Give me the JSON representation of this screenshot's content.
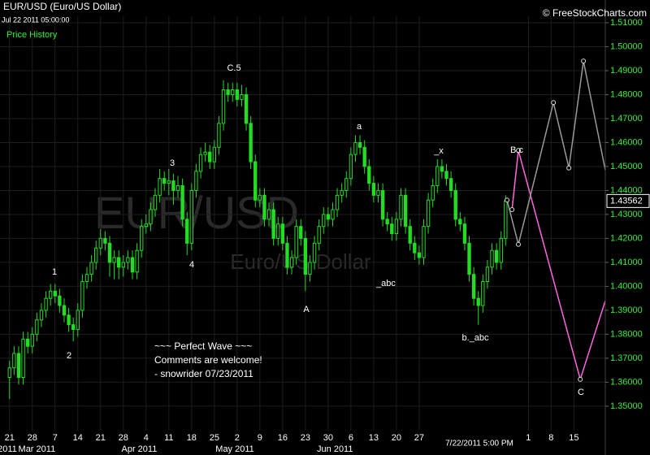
{
  "chart_data": {
    "type": "candlestick",
    "title": "EUR/USD (Euro/US Dollar)",
    "subtitle": "Jul 22 2011 05:00:00",
    "panel_label": "Price History",
    "copyright": "© FreeStockCharts.com",
    "watermark": "EUR/USD",
    "watermark_subtitle": "Euro/US Dollar",
    "crosshair_time": "7/22/2011 5:00 PM",
    "color": "#22dd22",
    "grid": true,
    "open": [
      1.362,
      1.366,
      1.372,
      1.362,
      1.378,
      1.375,
      1.38,
      1.386,
      1.39,
      1.395,
      1.398,
      1.396,
      1.392,
      1.388,
      1.384,
      1.382,
      1.39,
      1.402,
      1.405,
      1.41,
      1.416,
      1.42,
      1.418,
      1.41,
      1.412,
      1.408,
      1.41,
      1.412,
      1.406,
      1.415,
      1.425,
      1.426,
      1.432,
      1.438,
      1.445,
      1.443,
      1.444,
      1.44,
      1.442,
      1.428,
      1.418,
      1.44,
      1.448,
      1.455,
      1.456,
      1.452,
      1.458,
      1.468,
      1.482,
      1.48,
      1.482,
      1.478,
      1.48,
      1.468,
      1.452,
      1.436,
      1.438,
      1.428,
      1.432,
      1.42,
      1.426,
      1.418,
      1.408,
      1.412,
      1.425,
      1.42,
      1.405,
      1.41,
      1.418,
      1.425,
      1.43,
      1.428,
      1.432,
      1.438,
      1.44,
      1.445,
      1.455,
      1.46,
      1.458,
      1.45,
      1.443,
      1.438,
      1.44,
      1.428,
      1.426,
      1.422,
      1.428,
      1.438,
      1.425,
      1.418,
      1.414,
      1.412,
      1.425,
      1.436,
      1.442,
      1.45,
      1.448,
      1.445,
      1.44,
      1.428,
      1.426,
      1.418,
      1.405,
      1.395,
      1.392,
      1.402,
      1.408,
      1.415,
      1.41,
      1.42
    ],
    "high": [
      1.369,
      1.375,
      1.375,
      1.381,
      1.381,
      1.383,
      1.389,
      1.393,
      1.398,
      1.401,
      1.401,
      1.399,
      1.395,
      1.391,
      1.387,
      1.393,
      1.405,
      1.408,
      1.413,
      1.419,
      1.424,
      1.423,
      1.421,
      1.415,
      1.415,
      1.413,
      1.415,
      1.415,
      1.418,
      1.428,
      1.43,
      1.435,
      1.441,
      1.449,
      1.448,
      1.449,
      1.447,
      1.446,
      1.445,
      1.431,
      1.443,
      1.451,
      1.458,
      1.46,
      1.459,
      1.461,
      1.471,
      1.486,
      1.485,
      1.485,
      1.485,
      1.484,
      1.483,
      1.471,
      1.455,
      1.441,
      1.441,
      1.435,
      1.435,
      1.429,
      1.429,
      1.421,
      1.415,
      1.428,
      1.428,
      1.423,
      1.413,
      1.421,
      1.428,
      1.433,
      1.433,
      1.435,
      1.441,
      1.443,
      1.448,
      1.458,
      1.463,
      1.463,
      1.461,
      1.453,
      1.446,
      1.443,
      1.443,
      1.431,
      1.429,
      1.431,
      1.441,
      1.441,
      1.428,
      1.421,
      1.417,
      1.428,
      1.439,
      1.445,
      1.453,
      1.453,
      1.451,
      1.448,
      1.443,
      1.431,
      1.429,
      1.421,
      1.408,
      1.398,
      1.405,
      1.411,
      1.418,
      1.418,
      1.423,
      1.438
    ],
    "low": [
      1.353,
      1.363,
      1.359,
      1.359,
      1.372,
      1.372,
      1.377,
      1.383,
      1.387,
      1.392,
      1.393,
      1.389,
      1.385,
      1.381,
      1.377,
      1.379,
      1.387,
      1.399,
      1.402,
      1.407,
      1.413,
      1.415,
      1.404,
      1.403,
      1.403,
      1.404,
      1.407,
      1.403,
      1.403,
      1.412,
      1.422,
      1.423,
      1.429,
      1.435,
      1.44,
      1.438,
      1.434,
      1.437,
      1.425,
      1.413,
      1.415,
      1.437,
      1.445,
      1.452,
      1.449,
      1.449,
      1.455,
      1.465,
      1.477,
      1.477,
      1.475,
      1.475,
      1.465,
      1.449,
      1.433,
      1.433,
      1.425,
      1.425,
      1.417,
      1.417,
      1.415,
      1.405,
      1.405,
      1.409,
      1.417,
      1.398,
      1.402,
      1.407,
      1.415,
      1.422,
      1.425,
      1.425,
      1.429,
      1.435,
      1.437,
      1.442,
      1.452,
      1.455,
      1.447,
      1.44,
      1.435,
      1.435,
      1.425,
      1.423,
      1.419,
      1.419,
      1.425,
      1.422,
      1.415,
      1.411,
      1.409,
      1.409,
      1.422,
      1.433,
      1.439,
      1.445,
      1.442,
      1.437,
      1.425,
      1.423,
      1.415,
      1.402,
      1.392,
      1.384,
      1.389,
      1.399,
      1.405,
      1.407,
      1.407,
      1.417
    ],
    "close": [
      1.366,
      1.372,
      1.362,
      1.378,
      1.375,
      1.38,
      1.386,
      1.39,
      1.395,
      1.398,
      1.396,
      1.392,
      1.388,
      1.384,
      1.382,
      1.39,
      1.402,
      1.405,
      1.41,
      1.416,
      1.42,
      1.418,
      1.41,
      1.412,
      1.408,
      1.41,
      1.412,
      1.406,
      1.415,
      1.425,
      1.426,
      1.432,
      1.438,
      1.445,
      1.443,
      1.444,
      1.44,
      1.442,
      1.428,
      1.418,
      1.44,
      1.448,
      1.455,
      1.456,
      1.452,
      1.458,
      1.468,
      1.482,
      1.48,
      1.482,
      1.478,
      1.48,
      1.468,
      1.452,
      1.436,
      1.438,
      1.428,
      1.432,
      1.42,
      1.426,
      1.418,
      1.408,
      1.412,
      1.425,
      1.42,
      1.405,
      1.41,
      1.418,
      1.425,
      1.43,
      1.428,
      1.432,
      1.438,
      1.44,
      1.445,
      1.455,
      1.46,
      1.458,
      1.45,
      1.443,
      1.438,
      1.44,
      1.428,
      1.426,
      1.422,
      1.428,
      1.438,
      1.425,
      1.418,
      1.414,
      1.412,
      1.425,
      1.436,
      1.442,
      1.45,
      1.448,
      1.445,
      1.44,
      1.428,
      1.426,
      1.418,
      1.405,
      1.395,
      1.392,
      1.402,
      1.408,
      1.415,
      1.41,
      1.42,
      1.43562
    ],
    "last_price": 1.43562,
    "projections": [
      {
        "color": "#ff66dd",
        "x": [
          110.4,
          111.8,
          125.4,
          130.9
        ],
        "values": [
          1.432,
          1.4567,
          1.3612,
          1.394
        ]
      },
      {
        "color": "#999999",
        "x": [
          109.3,
          111.8,
          119.5,
          122.9,
          126.1,
          130.9
        ],
        "values": [
          1.436,
          1.4175,
          1.4767,
          1.4494,
          1.494,
          1.4485
        ]
      }
    ],
    "xlim": [
      -2.1,
      130.9
    ],
    "xticks": [
      {
        "value": 0,
        "label": "21"
      },
      {
        "value": 5,
        "label": "28"
      },
      {
        "value": 10,
        "label": "7"
      },
      {
        "value": 15,
        "label": "14"
      },
      {
        "value": 20,
        "label": "21"
      },
      {
        "value": 25,
        "label": "28"
      },
      {
        "value": 30,
        "label": "4"
      },
      {
        "value": 35,
        "label": "11"
      },
      {
        "value": 40,
        "label": "18"
      },
      {
        "value": 45,
        "label": "25"
      },
      {
        "value": 50,
        "label": "2"
      },
      {
        "value": 55,
        "label": "9"
      },
      {
        "value": 60,
        "label": "16"
      },
      {
        "value": 65,
        "label": "23"
      },
      {
        "value": 70,
        "label": "30"
      },
      {
        "value": 75,
        "label": "6"
      },
      {
        "value": 80,
        "label": "13"
      },
      {
        "value": 85,
        "label": "20"
      },
      {
        "value": 90,
        "label": "27"
      },
      {
        "value": 114,
        "label": "1"
      },
      {
        "value": 119,
        "label": "8"
      },
      {
        "value": 124,
        "label": "15"
      }
    ],
    "month_ticks": [
      {
        "value": -0.5,
        "label": "2011"
      },
      {
        "value": 6,
        "label": "Mar 2011"
      },
      {
        "value": 28.5,
        "label": "Apr 2011"
      },
      {
        "value": 49.5,
        "label": "May 2011"
      },
      {
        "value": 71.5,
        "label": "Jun 2011"
      }
    ],
    "ylim": [
      1.3398,
      1.5127
    ],
    "yticks": [
      {
        "value": 1.35,
        "label": "1.35000"
      },
      {
        "value": 1.36,
        "label": "1.36000"
      },
      {
        "value": 1.37,
        "label": "1.37000"
      },
      {
        "value": 1.38,
        "label": "1.38000"
      },
      {
        "value": 1.39,
        "label": "1.39000"
      },
      {
        "value": 1.4,
        "label": "1.40000"
      },
      {
        "value": 1.41,
        "label": "1.41000"
      },
      {
        "value": 1.42,
        "label": "1.42000"
      },
      {
        "value": 1.43,
        "label": "1.43000"
      },
      {
        "value": 1.44,
        "label": "1.44000"
      },
      {
        "value": 1.45,
        "label": "1.45000"
      },
      {
        "value": 1.46,
        "label": "1.46000"
      },
      {
        "value": 1.47,
        "label": "1.47000"
      },
      {
        "value": 1.48,
        "label": "1.48000"
      },
      {
        "value": 1.49,
        "label": "1.49000"
      },
      {
        "value": 1.5,
        "label": "1.50000"
      },
      {
        "value": 1.51,
        "label": "1.51000"
      }
    ],
    "annotations": [
      "C.5",
      "3",
      "1",
      "2",
      "4",
      "A",
      "a",
      "_abc",
      "_x",
      "B.c",
      "b._abc",
      "C"
    ],
    "comment": [
      "~~~ Perfect Wave ~~~",
      "Comments are welcome!",
      "- snowrider  07/23/2011"
    ]
  }
}
